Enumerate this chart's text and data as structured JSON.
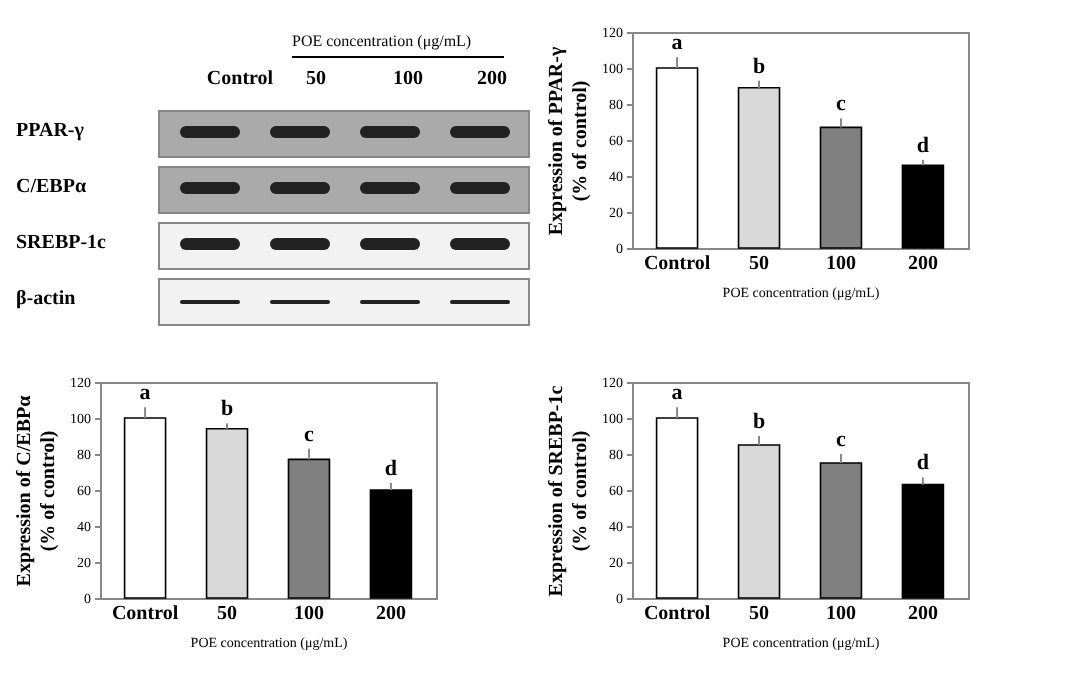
{
  "chart_data": [
    {
      "type": "other",
      "categories": [
        "Control",
        "50",
        "100",
        "200"
      ],
      "y_categories": [
        "PPAR-γ",
        "C/EBPα",
        "SREBP-1c",
        "β-actin"
      ],
      "xlabel": "POE concentration (μg/mL)"
    },
    {
      "type": "bar",
      "categories": [
        "Control",
        "50",
        "100",
        "200"
      ],
      "values": [
        100,
        89,
        67,
        46
      ],
      "errors": [
        6,
        4,
        5,
        3
      ],
      "colors": [
        "#ffffff",
        "#d9d9d9",
        "#808080",
        "#000000"
      ],
      "ylim": [
        0,
        120
      ],
      "yticks": [
        0,
        20,
        40,
        60,
        80,
        100,
        120
      ],
      "xlabel": "POE concentration (μg/mL)",
      "ylabel": "Expression of PPAR-γ\n(% of control)",
      "annotations": [
        {
          "text": "a",
          "x": "Control",
          "y": 106
        },
        {
          "text": "b",
          "x": "50",
          "y": 93
        },
        {
          "text": "c",
          "x": "100",
          "y": 72
        },
        {
          "text": "d",
          "x": "200",
          "y": 49
        }
      ]
    },
    {
      "type": "bar",
      "categories": [
        "Control",
        "50",
        "100",
        "200"
      ],
      "values": [
        100,
        94,
        77,
        60
      ],
      "errors": [
        6,
        3,
        6,
        4
      ],
      "colors": [
        "#ffffff",
        "#d9d9d9",
        "#808080",
        "#000000"
      ],
      "ylim": [
        0,
        120
      ],
      "yticks": [
        0,
        20,
        40,
        60,
        80,
        100,
        120
      ],
      "xlabel": "POE concentration (μg/mL)",
      "ylabel": "Expression of C/EBPα\n(% of control)",
      "annotations": [
        {
          "text": "a",
          "x": "Control",
          "y": 106
        },
        {
          "text": "b",
          "x": "50",
          "y": 97
        },
        {
          "text": "c",
          "x": "100",
          "y": 83
        },
        {
          "text": "d",
          "x": "200",
          "y": 64
        }
      ]
    },
    {
      "type": "bar",
      "categories": [
        "Control",
        "50",
        "100",
        "200"
      ],
      "values": [
        100,
        85,
        75,
        63
      ],
      "errors": [
        6,
        5,
        5,
        4
      ],
      "colors": [
        "#ffffff",
        "#d9d9d9",
        "#808080",
        "#000000"
      ],
      "ylim": [
        0,
        120
      ],
      "yticks": [
        0,
        20,
        40,
        60,
        80,
        100,
        120
      ],
      "xlabel": "POE concentration (μg/mL)",
      "ylabel": "Expression of SREBP-1c\n(% of control)",
      "annotations": [
        {
          "text": "a",
          "x": "Control",
          "y": 106
        },
        {
          "text": "b",
          "x": "50",
          "y": 90
        },
        {
          "text": "c",
          "x": "100",
          "y": 80
        },
        {
          "text": "d",
          "x": "200",
          "y": 67
        }
      ]
    }
  ]
}
